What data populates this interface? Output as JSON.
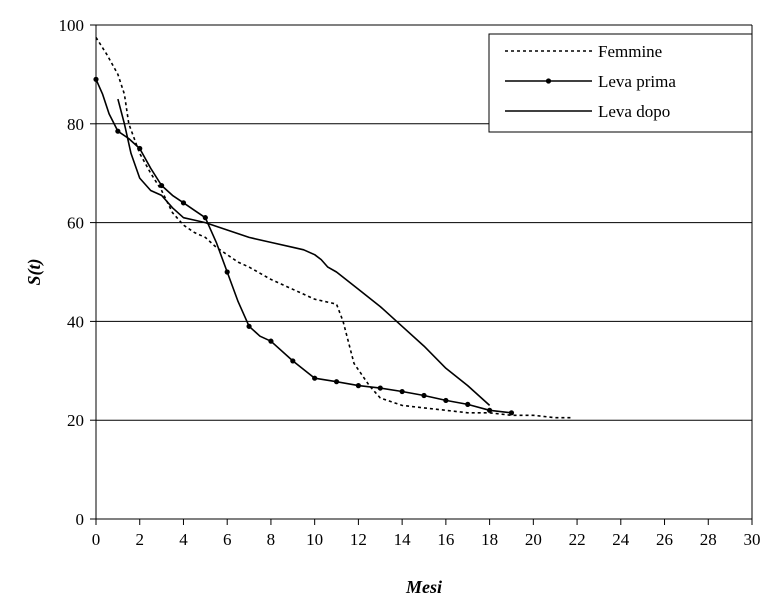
{
  "chart_data": {
    "type": "line",
    "xlabel": "Mesi",
    "ylabel": "S(t)",
    "xlim": [
      0,
      30
    ],
    "ylim": [
      0,
      100
    ],
    "xticks": [
      0,
      2,
      4,
      6,
      8,
      10,
      12,
      14,
      16,
      18,
      20,
      22,
      24,
      26,
      28,
      30
    ],
    "yticks": [
      0,
      20,
      40,
      60,
      80,
      100
    ],
    "grid": "horizontal",
    "legend_position": "top-right",
    "series": [
      {
        "name": "Femmine",
        "style": "dotted",
        "markers": false,
        "x": [
          0,
          0.5,
          1,
          1.3,
          1.5,
          2,
          2.5,
          3,
          3.5,
          4,
          4.5,
          5,
          5.5,
          6,
          6.5,
          7,
          8,
          9,
          10,
          11,
          11.3,
          11.8,
          12.5,
          13,
          14,
          15,
          16,
          17,
          18,
          19,
          20,
          21,
          21.8
        ],
        "y": [
          97.5,
          94,
          90,
          86,
          80,
          74,
          70,
          66.5,
          62,
          59.5,
          58,
          57,
          55,
          53.5,
          52,
          51,
          48.5,
          46.5,
          44.5,
          43.5,
          40,
          31.5,
          27,
          24.5,
          23,
          22.5,
          22,
          21.5,
          21.5,
          21,
          21,
          20.5,
          20.5
        ]
      },
      {
        "name": "Leva prima",
        "style": "solid",
        "markers": true,
        "marker_x": [
          0,
          1,
          2,
          3,
          4,
          5,
          6,
          7,
          8,
          9,
          10,
          11,
          12,
          13,
          14,
          15,
          16,
          17,
          18,
          19
        ],
        "x": [
          0,
          0.3,
          0.6,
          1,
          1.5,
          2,
          2.5,
          3,
          3.5,
          4,
          4.5,
          5,
          5.5,
          6,
          6.5,
          7,
          7.5,
          8,
          9,
          10,
          11,
          12,
          13,
          14,
          15,
          16,
          17,
          18,
          19
        ],
        "y": [
          89,
          86,
          82,
          78.5,
          77,
          75,
          71,
          67.5,
          65.5,
          64,
          62.5,
          61,
          56,
          50,
          44,
          39,
          37,
          36,
          32,
          28.5,
          27.8,
          27,
          26.5,
          25.8,
          25,
          24,
          23.2,
          22,
          21.5
        ]
      },
      {
        "name": "Leva dopo",
        "style": "solid",
        "markers": false,
        "x": [
          1,
          1.3,
          1.6,
          2,
          2.5,
          3,
          3.5,
          4,
          4.5,
          5,
          6,
          7,
          8,
          9,
          9.5,
          10,
          10.3,
          10.6,
          11,
          12,
          13,
          14,
          15,
          16,
          17,
          18
        ],
        "y": [
          85,
          80,
          74,
          69,
          66.5,
          65.5,
          63,
          61,
          60.5,
          60,
          58.5,
          57,
          56,
          55,
          54.5,
          53.5,
          52.5,
          51,
          50,
          46.5,
          43,
          39,
          35,
          30.5,
          27,
          23
        ]
      }
    ]
  }
}
